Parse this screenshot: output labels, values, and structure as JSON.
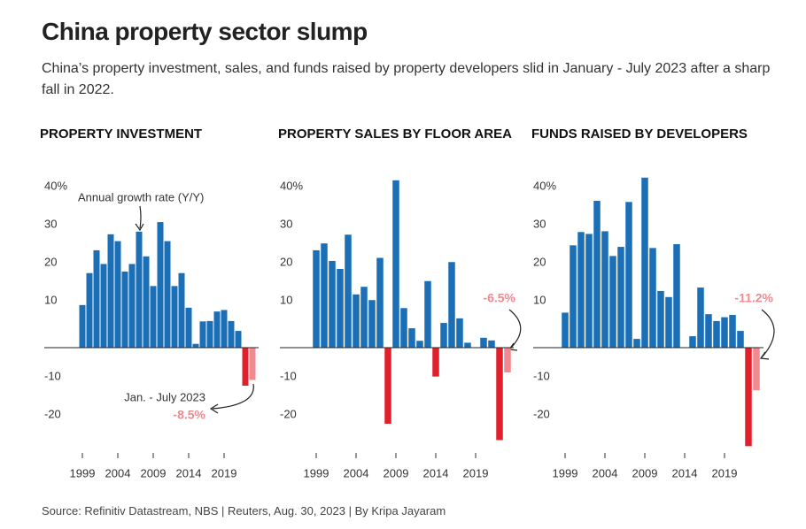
{
  "title": "China property sector slump",
  "subtitle": "China’s property investment, sales, and funds raised by property developers slid in January - July 2023 after a sharp fall in 2022.",
  "source": "Source: Refinitiv Datastream, NBS | Reuters, Aug. 30, 2023 | By Kripa Jayaram",
  "chart_data": [
    {
      "type": "bar",
      "title": "PROPERTY INVESTMENT",
      "categories": [
        "1999",
        null,
        null,
        null,
        null,
        "2004",
        null,
        null,
        null,
        null,
        "2009",
        null,
        null,
        null,
        null,
        "2014",
        null,
        null,
        null,
        null,
        "2019",
        null,
        null,
        null,
        null
      ],
      "values": [
        11.2,
        19.6,
        25.6,
        22.0,
        29.8,
        28.0,
        20.0,
        22.0,
        30.5,
        24.0,
        16.2,
        33.0,
        28.0,
        16.2,
        19.6,
        10.5,
        1.0,
        6.9,
        7.0,
        9.5,
        9.9,
        7.0,
        4.4,
        -10.0,
        -8.5
      ],
      "value_labels": [
        null,
        null,
        null,
        null,
        null,
        null,
        null,
        null,
        null,
        null,
        null,
        null,
        null,
        null,
        null,
        null,
        null,
        null,
        null,
        null,
        null,
        null,
        null,
        null,
        "-8.5%"
      ],
      "colors": [
        "#1a6fb6",
        "#1a6fb6",
        "#1a6fb6",
        "#1a6fb6",
        "#1a6fb6",
        "#1a6fb6",
        "#1a6fb6",
        "#1a6fb6",
        "#1a6fb6",
        "#1a6fb6",
        "#1a6fb6",
        "#1a6fb6",
        "#1a6fb6",
        "#1a6fb6",
        "#1a6fb6",
        "#1a6fb6",
        "#1a6fb6",
        "#1a6fb6",
        "#1a6fb6",
        "#1a6fb6",
        "#1a6fb6",
        "#1a6fb6",
        "#1a6fb6",
        "#e0202b",
        "#f08a90"
      ],
      "annotations": [
        "Annual growth rate (Y/Y)",
        "Jan. - July 2023"
      ],
      "ylim": [
        -28,
        45
      ],
      "yticks": [
        {
          "value": 40,
          "label": "40%"
        },
        30,
        20,
        10,
        -10,
        -20
      ]
    },
    {
      "type": "bar",
      "title": "PROPERTY SALES BY FLOOR AREA",
      "categories": [
        "1999",
        null,
        null,
        null,
        null,
        "2004",
        null,
        null,
        null,
        null,
        "2009",
        null,
        null,
        null,
        null,
        "2014",
        null,
        null,
        null,
        null,
        "2019",
        null,
        null,
        null,
        null
      ],
      "values": [
        25.6,
        27.4,
        22.8,
        20.7,
        29.7,
        14.0,
        16.0,
        12.5,
        23.6,
        -20.0,
        44.0,
        10.4,
        5.1,
        1.8,
        17.5,
        -7.6,
        6.5,
        22.5,
        7.7,
        1.3,
        -0.1,
        2.6,
        1.9,
        -24.3,
        -6.5
      ],
      "value_labels": [
        null,
        null,
        null,
        null,
        null,
        null,
        null,
        null,
        null,
        null,
        null,
        null,
        null,
        null,
        null,
        null,
        null,
        null,
        null,
        null,
        null,
        null,
        null,
        null,
        "-6.5%"
      ],
      "colors": [
        "#1a6fb6",
        "#1a6fb6",
        "#1a6fb6",
        "#1a6fb6",
        "#1a6fb6",
        "#1a6fb6",
        "#1a6fb6",
        "#1a6fb6",
        "#1a6fb6",
        "#e0202b",
        "#1a6fb6",
        "#1a6fb6",
        "#1a6fb6",
        "#1a6fb6",
        "#1a6fb6",
        "#e0202b",
        "#1a6fb6",
        "#1a6fb6",
        "#1a6fb6",
        "#1a6fb6",
        "#1a6fb6",
        "#1a6fb6",
        "#1a6fb6",
        "#e0202b",
        "#f08a90"
      ],
      "ylim": [
        -28,
        45
      ],
      "yticks": [
        {
          "value": 40,
          "label": "40%"
        },
        30,
        20,
        10,
        -10,
        -20
      ]
    },
    {
      "type": "bar",
      "title": "FUNDS RAISED BY DEVELOPERS",
      "categories": [
        "1999",
        null,
        null,
        null,
        null,
        "2004",
        null,
        null,
        null,
        null,
        "2009",
        null,
        null,
        null,
        null,
        "2014",
        null,
        null,
        null,
        null,
        "2019",
        null,
        null,
        null,
        null
      ],
      "values": [
        9.2,
        26.9,
        30.4,
        29.9,
        38.6,
        30.6,
        24.1,
        26.5,
        38.3,
        2.3,
        44.7,
        26.2,
        14.9,
        13.3,
        27.2,
        -0.1,
        3.0,
        15.8,
        8.8,
        7.0,
        8.0,
        8.6,
        4.4,
        -25.9,
        -11.2
      ],
      "value_labels": [
        null,
        null,
        null,
        null,
        null,
        null,
        null,
        null,
        null,
        null,
        null,
        null,
        null,
        null,
        null,
        null,
        null,
        null,
        null,
        null,
        null,
        null,
        null,
        null,
        "-11.2%"
      ],
      "colors": [
        "#1a6fb6",
        "#1a6fb6",
        "#1a6fb6",
        "#1a6fb6",
        "#1a6fb6",
        "#1a6fb6",
        "#1a6fb6",
        "#1a6fb6",
        "#1a6fb6",
        "#1a6fb6",
        "#1a6fb6",
        "#1a6fb6",
        "#1a6fb6",
        "#1a6fb6",
        "#1a6fb6",
        "#e0202b",
        "#1a6fb6",
        "#1a6fb6",
        "#1a6fb6",
        "#1a6fb6",
        "#1a6fb6",
        "#1a6fb6",
        "#1a6fb6",
        "#e0202b",
        "#f08a90"
      ],
      "ylim": [
        -28,
        45
      ],
      "yticks": [
        {
          "value": 40,
          "label": "40%"
        },
        30,
        20,
        10,
        -10,
        -20
      ]
    }
  ]
}
